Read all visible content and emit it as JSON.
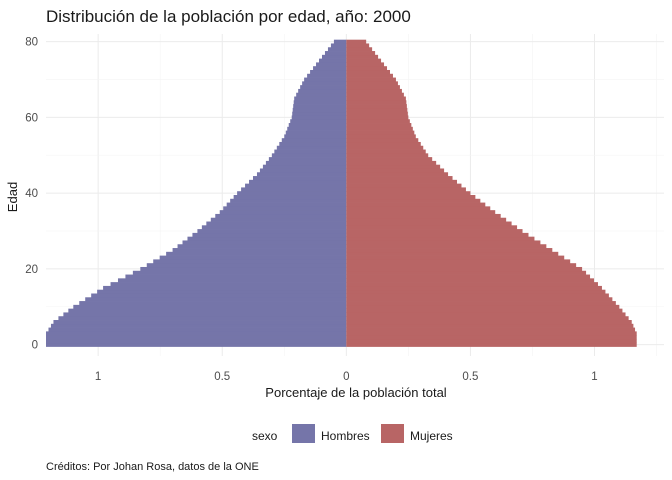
{
  "chart_data": {
    "type": "bar",
    "orientation": "horizontal",
    "subtype": "population-pyramid",
    "title": "Distribución de la población por edad, año: 2000",
    "xlabel": "Porcentaje de la población total",
    "ylabel": "Edad",
    "caption": "Créditos: Por Johan Rosa, datos de la ONE",
    "legend_title": "sexo",
    "legend_position": "bottom",
    "grid": true,
    "xlim": [
      -1.21,
      1.28
    ],
    "ylim": [
      -3,
      82
    ],
    "x_ticks": [
      {
        "value": -1,
        "label": "1"
      },
      {
        "value": -0.5,
        "label": "0.5"
      },
      {
        "value": 0,
        "label": "0"
      },
      {
        "value": 0.5,
        "label": "0.5"
      },
      {
        "value": 1,
        "label": "1"
      }
    ],
    "y_ticks": [
      {
        "value": 0,
        "label": "0"
      },
      {
        "value": 20,
        "label": "20"
      },
      {
        "value": 40,
        "label": "40"
      },
      {
        "value": 60,
        "label": "60"
      },
      {
        "value": 80,
        "label": "80"
      }
    ],
    "series": [
      {
        "name": "Hombres",
        "color": "#7575a9",
        "profile": [
          [
            0,
            1.21
          ],
          [
            3,
            1.21
          ],
          [
            6,
            1.18
          ],
          [
            10,
            1.1
          ],
          [
            15,
            0.98
          ],
          [
            20,
            0.83
          ],
          [
            25,
            0.7
          ],
          [
            30,
            0.6
          ],
          [
            35,
            0.51
          ],
          [
            40,
            0.44
          ],
          [
            45,
            0.36
          ],
          [
            50,
            0.3
          ],
          [
            55,
            0.25
          ],
          [
            60,
            0.22
          ],
          [
            65,
            0.21
          ],
          [
            70,
            0.17
          ],
          [
            75,
            0.11
          ],
          [
            80,
            0.05
          ]
        ]
      },
      {
        "name": "Mujeres",
        "color": "#b86565",
        "profile": [
          [
            0,
            1.17
          ],
          [
            3,
            1.17
          ],
          [
            6,
            1.15
          ],
          [
            10,
            1.1
          ],
          [
            15,
            1.03
          ],
          [
            20,
            0.95
          ],
          [
            25,
            0.83
          ],
          [
            30,
            0.71
          ],
          [
            35,
            0.6
          ],
          [
            40,
            0.5
          ],
          [
            45,
            0.41
          ],
          [
            50,
            0.33
          ],
          [
            55,
            0.28
          ],
          [
            60,
            0.25
          ],
          [
            65,
            0.24
          ],
          [
            70,
            0.2
          ],
          [
            75,
            0.14
          ],
          [
            80,
            0.08
          ]
        ]
      }
    ]
  }
}
